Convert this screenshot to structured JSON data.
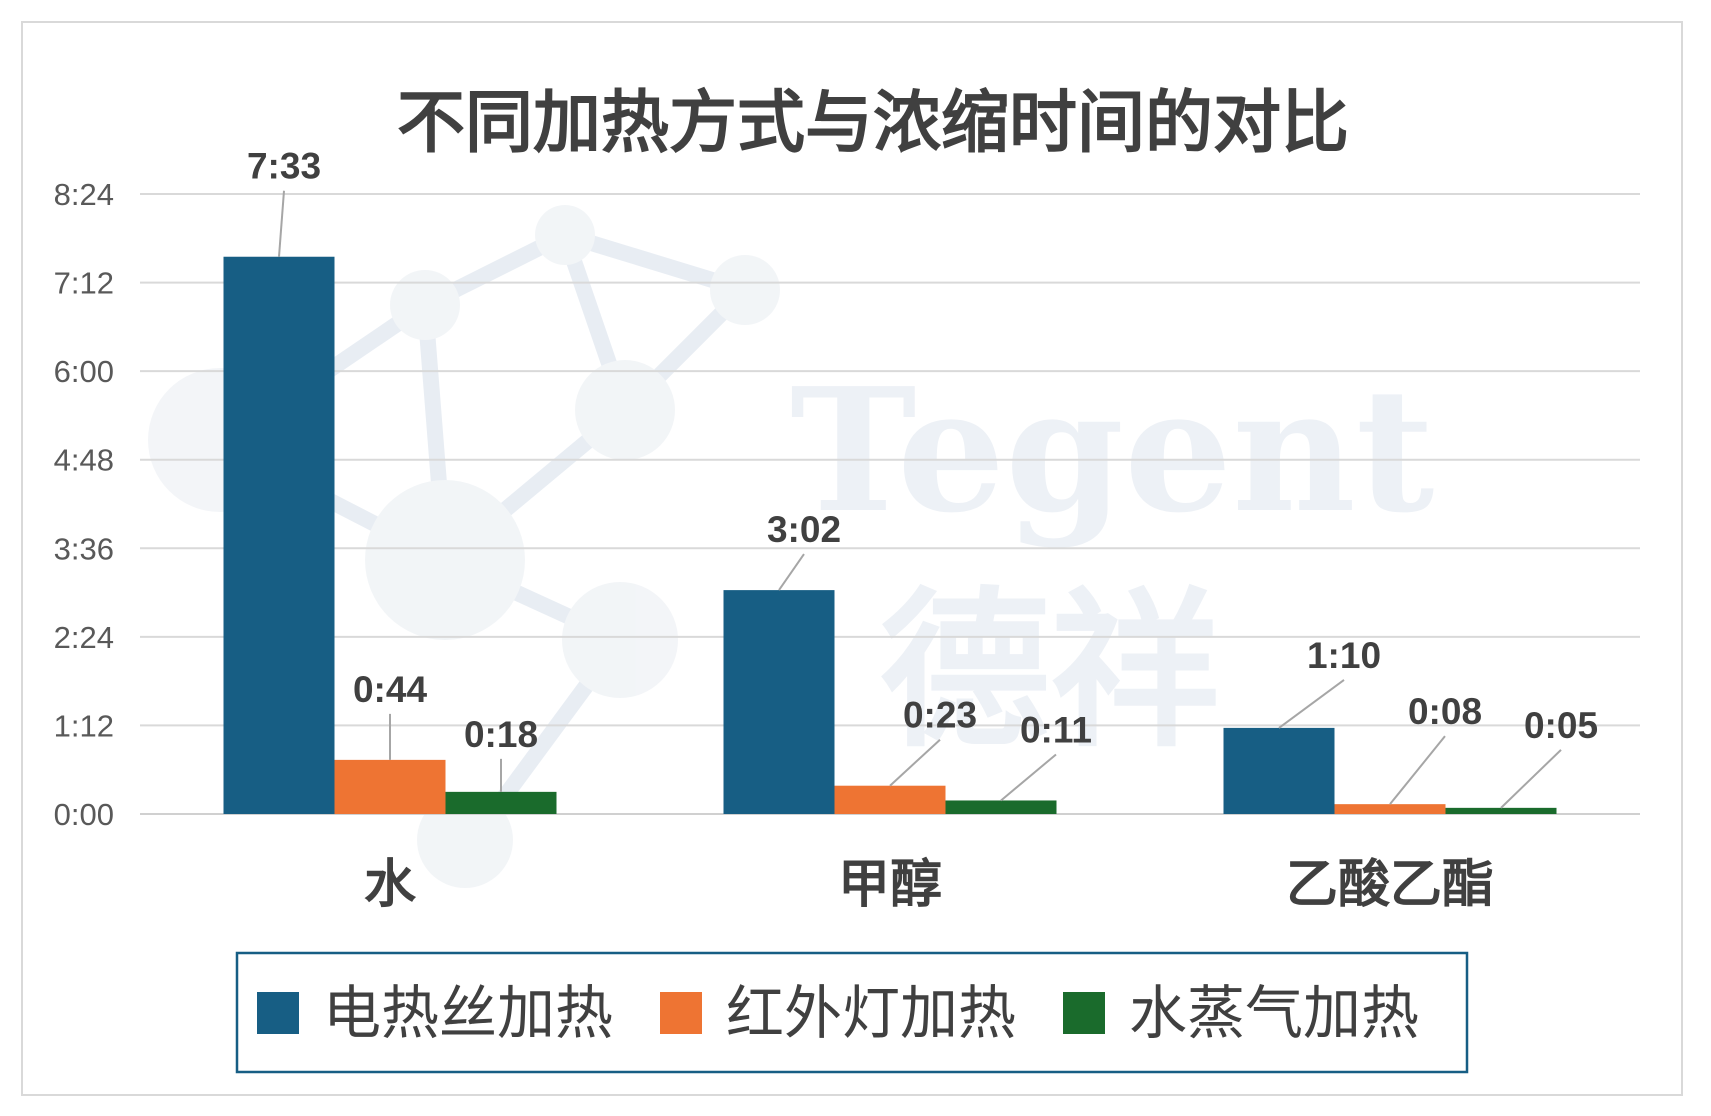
{
  "chart_data": {
    "type": "bar",
    "title": "不同加热方式与浓缩时间的对比",
    "categories": [
      "水",
      "甲醇",
      "乙酸乙酯"
    ],
    "y_ticks": [
      "0:00",
      "1:12",
      "2:24",
      "3:36",
      "4:48",
      "6:00",
      "7:12",
      "8:24"
    ],
    "ylim_minutes": [
      0,
      504
    ],
    "grid": true,
    "legend_position": "bottom",
    "series": [
      {
        "name": "电热丝加热",
        "color": "#175e84",
        "values_minutes": [
          453,
          182,
          70
        ],
        "labels": [
          "7:33",
          "3:02",
          "1:10"
        ]
      },
      {
        "name": "红外灯加热",
        "color": "#ee7433",
        "values_minutes": [
          44,
          23,
          8
        ],
        "labels": [
          "0:44",
          "0:23",
          "0:08"
        ]
      },
      {
        "name": "水蒸气加热",
        "color": "#1a6b2c",
        "values_minutes": [
          18,
          11,
          5
        ],
        "labels": [
          "0:18",
          "0:11",
          "0:05"
        ]
      }
    ]
  },
  "watermark": {
    "latin": "Tegent",
    "chinese": "德祥"
  }
}
